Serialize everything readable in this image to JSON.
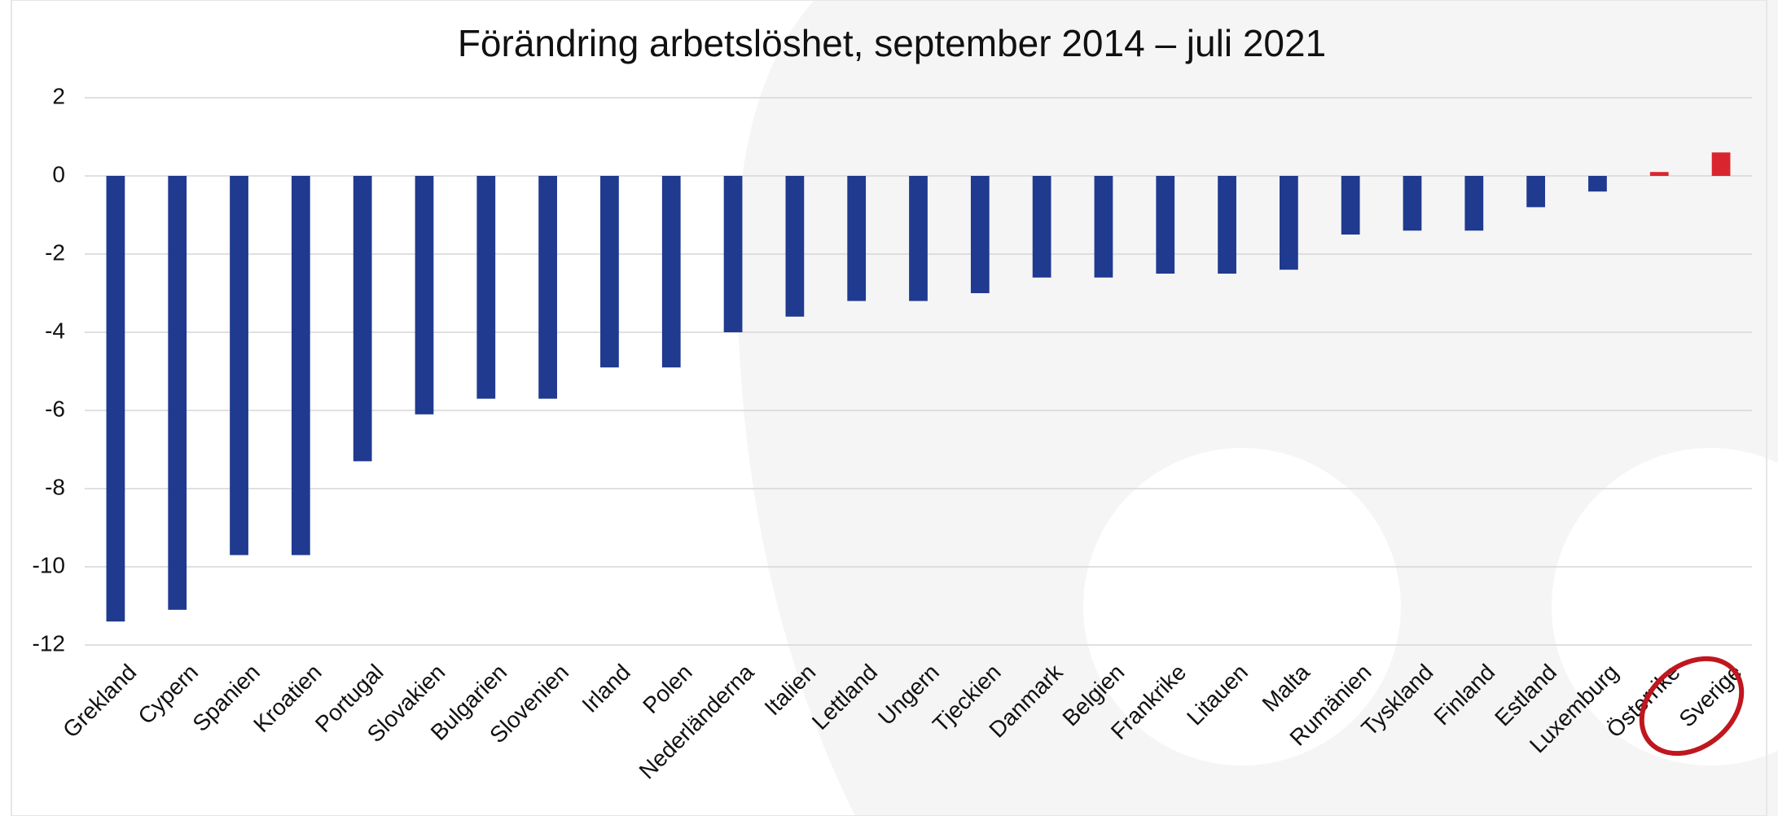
{
  "chart_data": {
    "type": "bar",
    "title": "Förändring arbetslöshet, september 2014 – juli 2021",
    "categories": [
      "Grekland",
      "Cypern",
      "Spanien",
      "Kroatien",
      "Portugal",
      "Slovakien",
      "Bulgarien",
      "Slovenien",
      "Irland",
      "Polen",
      "Nederländerna",
      "Italien",
      "Lettland",
      "Ungern",
      "Tjeckien",
      "Danmark",
      "Belgien",
      "Frankrike",
      "Litauen",
      "Malta",
      "Rumänien",
      "Tyskland",
      "Finland",
      "Estland",
      "Luxemburg",
      "Österrike",
      "Sverige"
    ],
    "values": [
      -11.4,
      -11.1,
      -9.7,
      -9.7,
      -7.3,
      -6.1,
      -5.7,
      -5.7,
      -4.9,
      -4.9,
      -4.0,
      -3.6,
      -3.2,
      -3.2,
      -3.0,
      -2.6,
      -2.6,
      -2.5,
      -2.5,
      -2.4,
      -1.5,
      -1.4,
      -1.4,
      -0.8,
      -0.4,
      0.1,
      0.6
    ],
    "colors": [
      "#1f3a8f",
      "#1f3a8f",
      "#1f3a8f",
      "#1f3a8f",
      "#1f3a8f",
      "#1f3a8f",
      "#1f3a8f",
      "#1f3a8f",
      "#1f3a8f",
      "#1f3a8f",
      "#1f3a8f",
      "#1f3a8f",
      "#1f3a8f",
      "#1f3a8f",
      "#1f3a8f",
      "#1f3a8f",
      "#1f3a8f",
      "#1f3a8f",
      "#1f3a8f",
      "#1f3a8f",
      "#1f3a8f",
      "#1f3a8f",
      "#1f3a8f",
      "#1f3a8f",
      "#1f3a8f",
      "#d9262e",
      "#d9262e"
    ],
    "ylim": [
      -12,
      2
    ],
    "yticks": [
      -12,
      -10,
      -8,
      -6,
      -4,
      -2,
      0,
      2
    ],
    "grid": true
  }
}
